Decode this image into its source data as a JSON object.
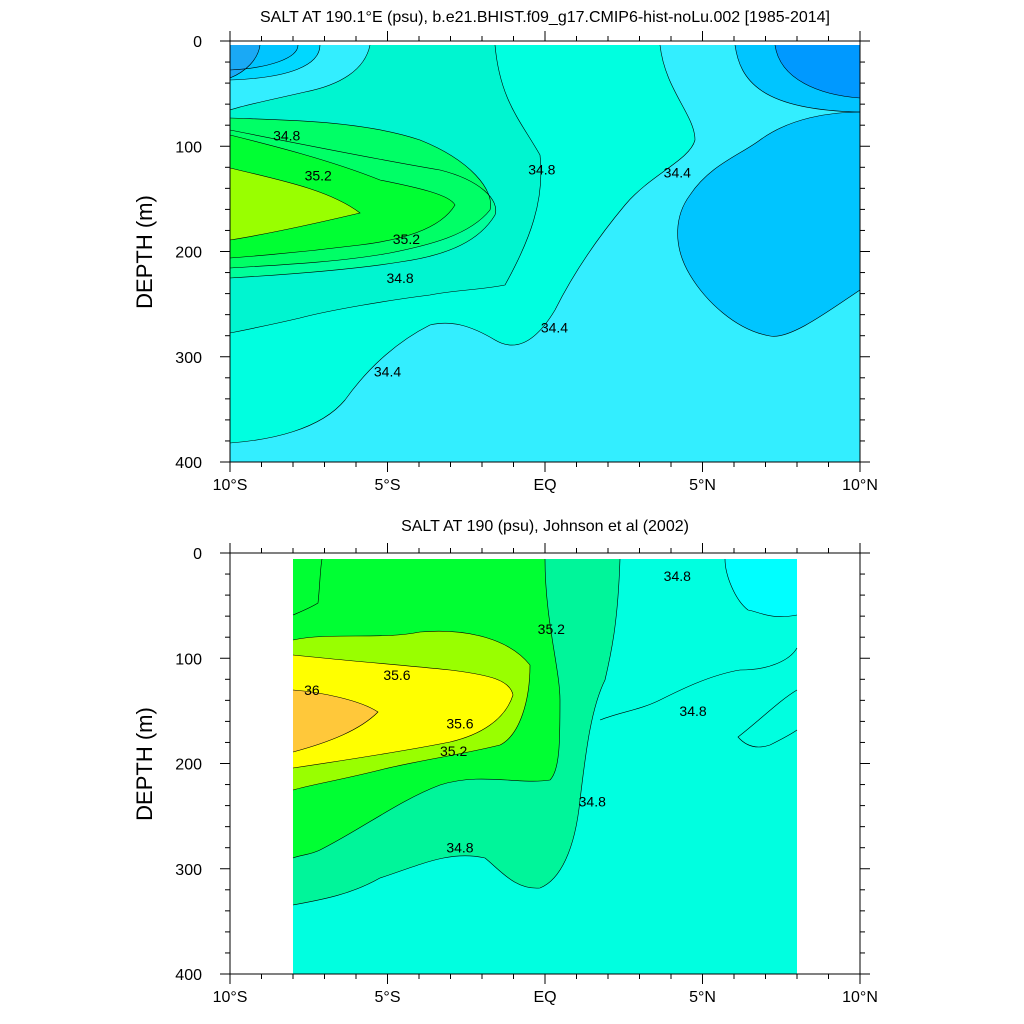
{
  "chart_data": [
    {
      "type": "contour",
      "title": "SALT AT 190.1°E (psu), b.e21.BHIST.f09_g17.CMIP6-hist-noLu.002 [1985-2014]",
      "ylabel": "DEPTH (m)",
      "xlabel": "",
      "x_ticks": [
        "10°S",
        "5°S",
        "EQ",
        "5°N",
        "10°N"
      ],
      "x_values": [
        -10,
        -5,
        0,
        5,
        10
      ],
      "y_ticks": [
        "0",
        "100",
        "200",
        "300",
        "400"
      ],
      "y_values": [
        0,
        100,
        200,
        300,
        400
      ],
      "xlim": [
        -10,
        10
      ],
      "ylim": [
        400,
        0
      ],
      "data_extent_x": [
        -10,
        10
      ],
      "contour_labels": [
        {
          "text": "34.8",
          "x": -8.2,
          "y": 90
        },
        {
          "text": "35.2",
          "x": -7.2,
          "y": 128
        },
        {
          "text": "35.2",
          "x": -4.4,
          "y": 188
        },
        {
          "text": "34.8",
          "x": -4.6,
          "y": 225
        },
        {
          "text": "34.8",
          "x": -0.1,
          "y": 122
        },
        {
          "text": "34.4",
          "x": 4.2,
          "y": 125
        },
        {
          "text": "34.4",
          "x": 0.3,
          "y": 272
        },
        {
          "text": "34.4",
          "x": -5.0,
          "y": 314
        }
      ]
    },
    {
      "type": "contour",
      "title": "SALT AT 190 (psu), Johnson et al (2002)",
      "ylabel": "DEPTH (m)",
      "xlabel": "",
      "x_ticks": [
        "10°S",
        "5°S",
        "EQ",
        "5°N",
        "10°N"
      ],
      "x_values": [
        -10,
        -5,
        0,
        5,
        10
      ],
      "y_ticks": [
        "0",
        "100",
        "200",
        "300",
        "400"
      ],
      "y_values": [
        0,
        100,
        200,
        300,
        400
      ],
      "xlim": [
        -10,
        10
      ],
      "ylim": [
        400,
        0
      ],
      "data_extent_x": [
        -8,
        8
      ],
      "contour_labels": [
        {
          "text": "34.8",
          "x": 4.2,
          "y": 22
        },
        {
          "text": "35.2",
          "x": 0.2,
          "y": 72
        },
        {
          "text": "35.6",
          "x": -4.7,
          "y": 116
        },
        {
          "text": "36",
          "x": -7.4,
          "y": 130
        },
        {
          "text": "35.6",
          "x": -2.7,
          "y": 162
        },
        {
          "text": "35.2",
          "x": -2.9,
          "y": 188
        },
        {
          "text": "34.8",
          "x": 4.7,
          "y": 150
        },
        {
          "text": "34.8",
          "x": 1.5,
          "y": 236
        },
        {
          "text": "34.8",
          "x": -2.7,
          "y": 280
        }
      ]
    }
  ]
}
